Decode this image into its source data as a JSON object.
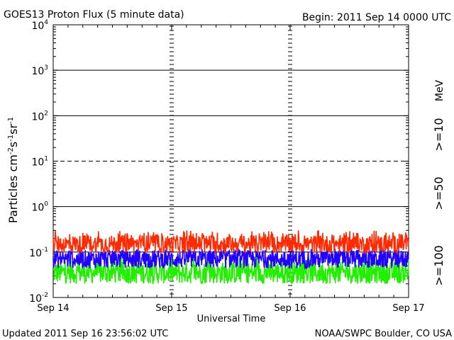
{
  "header": {
    "title": "GOES13 Proton Flux (5 minute data)",
    "begin": "Begin: 2011 Sep 14 0000 UTC"
  },
  "footer": {
    "updated": "Updated 2011 Sep 16 23:56:02 UTC",
    "credit": "NOAA/SWPC Boulder, CO USA"
  },
  "chart_data": {
    "type": "line",
    "title": "GOES13 Proton Flux (5 minute data)",
    "xlabel": "Universal Time",
    "ylabel_parts": {
      "base": "Particles cm",
      "exp1": "-2",
      "mid1": "s",
      "exp2": "-1",
      "mid2": "sr",
      "exp3": "-1"
    },
    "x_ticks": [
      "Sep 14",
      "Sep 15",
      "Sep 16",
      "Sep 17"
    ],
    "y_scale": "log",
    "ylim": [
      0.01,
      10000
    ],
    "y_ticks": [
      {
        "base": "10",
        "exp": "-2"
      },
      {
        "base": "10",
        "exp": "-1"
      },
      {
        "base": "10",
        "exp": "0"
      },
      {
        "base": "10",
        "exp": "1"
      },
      {
        "base": "10",
        "exp": "2"
      },
      {
        "base": "10",
        "exp": "3"
      },
      {
        "base": "10",
        "exp": "4"
      }
    ],
    "horizontal_lines": [
      {
        "value": 0.1,
        "style": "solid"
      },
      {
        "value": 1,
        "style": "solid"
      },
      {
        "value": 10,
        "style": "dashed"
      },
      {
        "value": 100,
        "style": "solid"
      },
      {
        "value": 1000,
        "style": "solid"
      }
    ],
    "unit_label": "MeV",
    "series": [
      {
        "name": ">=10",
        "color": "#ff2a00",
        "typical_value": 0.15,
        "min_value": 0.09,
        "max_value": 0.3
      },
      {
        "name": ">=50",
        "color": "#2200ff",
        "typical_value": 0.07,
        "min_value": 0.035,
        "max_value": 0.12
      },
      {
        "name": ">=100",
        "color": "#22ee00",
        "typical_value": 0.035,
        "min_value": 0.018,
        "max_value": 0.08
      }
    ]
  }
}
